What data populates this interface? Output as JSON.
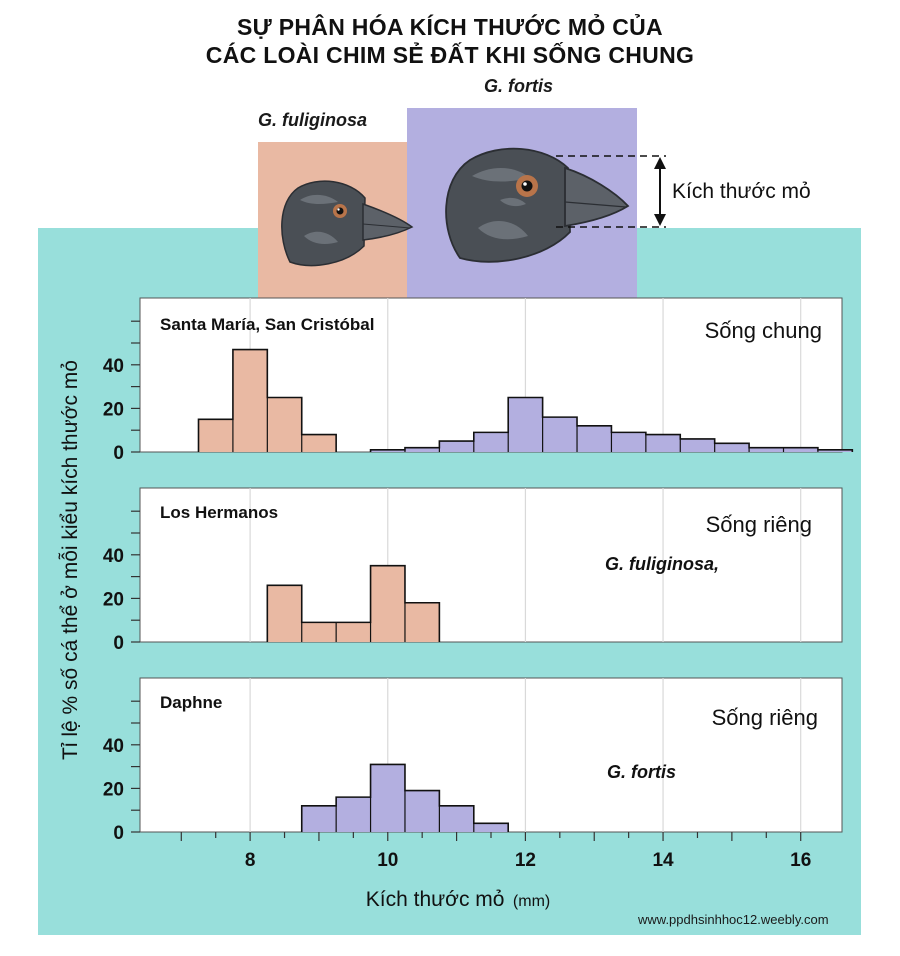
{
  "title": {
    "line1": "SỰ PHÂN HÓA KÍCH THƯỚC MỎ CỦA",
    "line2": "CÁC LOÀI CHIM SẺ ĐẤT KHI SỐNG CHUNG"
  },
  "illustration": {
    "species_left": "G. fuliginosa",
    "species_right": "G. fortis",
    "beak_size_label": "Kích thước mỏ",
    "colors": {
      "fuliginosa_box": "#e9b9a3",
      "fortis_box": "#b3afe0"
    }
  },
  "footer": {
    "watermark": "www.ppdhsinhhoc12.weebly.com"
  },
  "chart_data": {
    "type": "bar",
    "ylabel": "Tỉ lệ % số cá thể ở mỗi kiểu kích thước mỏ",
    "xlabel": "Kích thước mỏ",
    "xlabel_unit": "(mm)",
    "xlim": [
      6.4,
      16.6
    ],
    "ylim": [
      0,
      70
    ],
    "x_ticks": [
      8,
      10,
      12,
      14,
      16
    ],
    "y_ticks": [
      0,
      20,
      40
    ],
    "bin_width": 0.5,
    "grid": true,
    "colors": {
      "fuliginosa": "#e9b9a3",
      "fortis": "#b3afe0",
      "edge": "#111111"
    },
    "panels": [
      {
        "location": "Santa María, San Cristóbal",
        "condition": "Sống chung",
        "species_note": "",
        "series": [
          {
            "species": "fuliginosa",
            "bin_starts": [
              7.25,
              7.75,
              8.25,
              8.75
            ],
            "values": [
              15,
              47,
              25,
              8
            ]
          },
          {
            "species": "fortis",
            "bin_starts": [
              9.75,
              10.25,
              10.75,
              11.25,
              11.75,
              12.25,
              12.75,
              13.25,
              13.75,
              14.25,
              14.75,
              15.25,
              15.75,
              16.25
            ],
            "values": [
              1,
              2,
              5,
              9,
              25,
              16,
              12,
              9,
              8,
              6,
              4,
              2,
              2,
              1
            ]
          }
        ]
      },
      {
        "location": "Los Hermanos",
        "condition": "Sống riêng",
        "species_note": "G. fuliginosa,",
        "series": [
          {
            "species": "fuliginosa",
            "bin_starts": [
              8.25,
              8.75,
              9.25,
              9.75,
              10.25
            ],
            "values": [
              26,
              9,
              9,
              35,
              18
            ]
          }
        ]
      },
      {
        "location": "Daphne",
        "condition": "Sống riêng",
        "species_note": "G. fortis",
        "series": [
          {
            "species": "fortis",
            "bin_starts": [
              8.75,
              9.25,
              9.75,
              10.25,
              10.75,
              11.25
            ],
            "values": [
              12,
              16,
              31,
              19,
              12,
              4
            ]
          }
        ]
      }
    ]
  }
}
